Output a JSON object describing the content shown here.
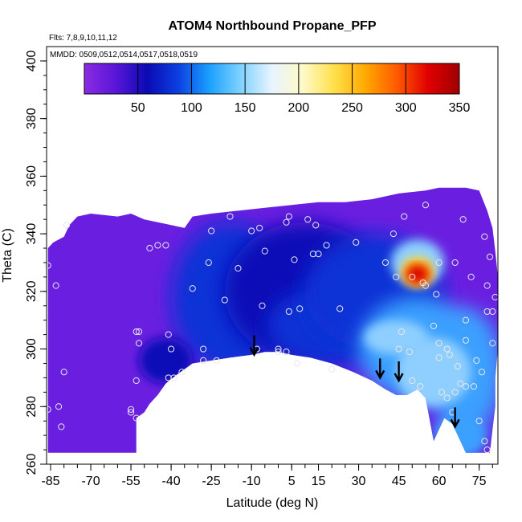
{
  "chart_data": {
    "type": "heatmap",
    "title": "ATOM4 Northbound Propane_PFP",
    "subtitle_flights": "Flts: 7,8,9,10,11,12",
    "subtitle_dates": "MMDD: 0509,0512,0514,0517,0518,0519",
    "xlabel": "Latitude (deg N)",
    "ylabel": "Theta (C)",
    "xlim": [
      -86.5,
      82
    ],
    "ylim": [
      260,
      405
    ],
    "x_ticks": [
      -85,
      -70,
      -55,
      -40,
      -25,
      -10,
      5,
      15,
      30,
      45,
      60,
      75
    ],
    "y_ticks": [
      260,
      280,
      300,
      320,
      340,
      360,
      380,
      400
    ],
    "colorbar": {
      "range": [
        0,
        350
      ],
      "ticks": [
        50,
        100,
        150,
        200,
        250,
        300,
        350
      ],
      "colors": [
        "#8a2be2",
        "#5a16d8",
        "#0a0ab4",
        "#0b3ee0",
        "#1aa0ff",
        "#7fd2ff",
        "#e8f4ff",
        "#fffac8",
        "#ffe04a",
        "#ffa800",
        "#ff5a00",
        "#e00000",
        "#a00000"
      ]
    },
    "shading_colors": {
      "background_violet": "#6a1fe0",
      "mid_blue": "#1030d6",
      "dark_blue": "#0a0ab8",
      "light_blue": "#3aa0ff",
      "pale_blue": "#8fcfff",
      "peak_red": "#d80000",
      "peak_orange": "#ff8a00",
      "peak_yellow": "#ffe03a"
    },
    "high_value_region": {
      "lat_range": [
        48,
        57
      ],
      "theta_range": [
        322,
        332
      ],
      "value_max": 350
    },
    "sample_points": [
      [
        -86,
        329
      ],
      [
        -83,
        322
      ],
      [
        -79,
        343
      ],
      [
        -80,
        292
      ],
      [
        -82,
        280
      ],
      [
        -81,
        273
      ],
      [
        -86,
        279
      ],
      [
        -55,
        279
      ],
      [
        -55,
        278
      ],
      [
        -53,
        306
      ],
      [
        -52,
        306
      ],
      [
        -52,
        302
      ],
      [
        -53,
        289
      ],
      [
        -53,
        276
      ],
      [
        -48,
        335
      ],
      [
        -45,
        336
      ],
      [
        -42,
        336
      ],
      [
        -41,
        305
      ],
      [
        -40,
        300
      ],
      [
        -41,
        290
      ],
      [
        -39,
        290
      ],
      [
        -36,
        292
      ],
      [
        -32,
        321
      ],
      [
        -26,
        330
      ],
      [
        -25,
        341
      ],
      [
        -28,
        300
      ],
      [
        -28,
        296
      ],
      [
        -23,
        296
      ],
      [
        -20,
        317
      ],
      [
        -18,
        346
      ],
      [
        -15,
        328
      ],
      [
        -10,
        341
      ],
      [
        -7,
        342
      ],
      [
        -8,
        300
      ],
      [
        -6,
        315
      ],
      [
        -5,
        334
      ],
      [
        0,
        300
      ],
      [
        0,
        299
      ],
      [
        3,
        344
      ],
      [
        4,
        346
      ],
      [
        3,
        299
      ],
      [
        4,
        313
      ],
      [
        6,
        331
      ],
      [
        7,
        295
      ],
      [
        8,
        314
      ],
      [
        11,
        345
      ],
      [
        14,
        343
      ],
      [
        13,
        333
      ],
      [
        15,
        333
      ],
      [
        18,
        336
      ],
      [
        20,
        293
      ],
      [
        23,
        314
      ],
      [
        29,
        337
      ],
      [
        40,
        330
      ],
      [
        43,
        340
      ],
      [
        44,
        325
      ],
      [
        46,
        306
      ],
      [
        45,
        300
      ],
      [
        47,
        346
      ],
      [
        49,
        299
      ],
      [
        50,
        325
      ],
      [
        50,
        289
      ],
      [
        53,
        287
      ],
      [
        54,
        323
      ],
      [
        55,
        322
      ],
      [
        55,
        350
      ],
      [
        58,
        308
      ],
      [
        59,
        319
      ],
      [
        60,
        302
      ],
      [
        60,
        297
      ],
      [
        60,
        330
      ],
      [
        61,
        285
      ],
      [
        63,
        300
      ],
      [
        63,
        283
      ],
      [
        64,
        298
      ],
      [
        65,
        278
      ],
      [
        66,
        330
      ],
      [
        66,
        285
      ],
      [
        67,
        294
      ],
      [
        68,
        288
      ],
      [
        69,
        345
      ],
      [
        70,
        303
      ],
      [
        70,
        287
      ],
      [
        70,
        310
      ],
      [
        72,
        325
      ],
      [
        73,
        287
      ],
      [
        74,
        296
      ],
      [
        75,
        275
      ],
      [
        76,
        292
      ],
      [
        77,
        339
      ],
      [
        78,
        313
      ],
      [
        78,
        322
      ],
      [
        79,
        332
      ],
      [
        80,
        313
      ],
      [
        81,
        318
      ],
      [
        80,
        302
      ],
      [
        77,
        268
      ],
      [
        78,
        265
      ]
    ],
    "arrows_lat": [
      -9,
      38,
      45,
      66
    ],
    "arrows_theta": [
      298,
      290,
      289,
      273
    ]
  }
}
